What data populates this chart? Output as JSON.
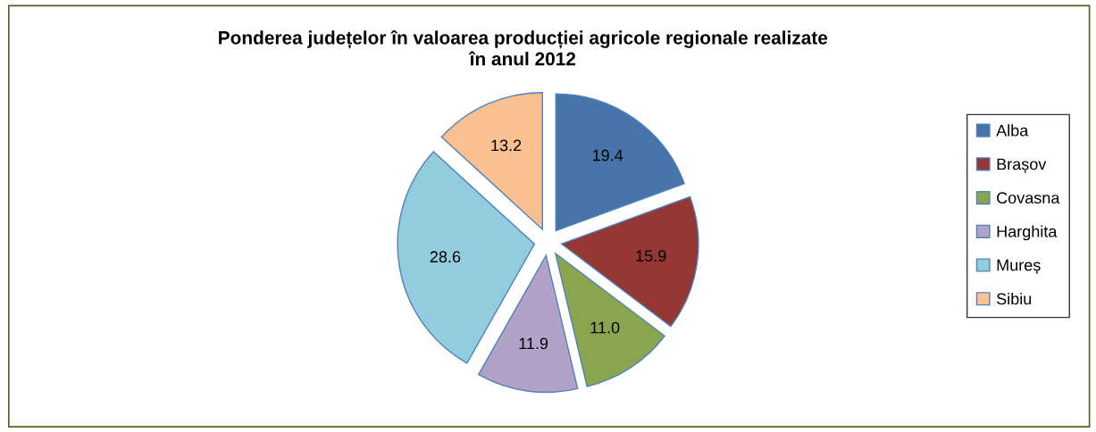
{
  "chart_data": {
    "type": "pie",
    "title": "Ponderea județelor în valoarea producției agricole regionale realizate\nîn anul 2012",
    "categories": [
      "Alba",
      "Brașov",
      "Covasna",
      "Harghita",
      "Mureș",
      "Sibiu"
    ],
    "values": [
      19.4,
      15.9,
      11.0,
      11.9,
      28.6,
      13.2
    ],
    "colors": [
      "#4674aa",
      "#953735",
      "#89a54e",
      "#b3a2c7",
      "#93cddd",
      "#fac090"
    ],
    "value_labels": [
      "19.4",
      "15.9",
      "11.0",
      "11.9",
      "28.6",
      "13.2"
    ],
    "legend": "right"
  }
}
